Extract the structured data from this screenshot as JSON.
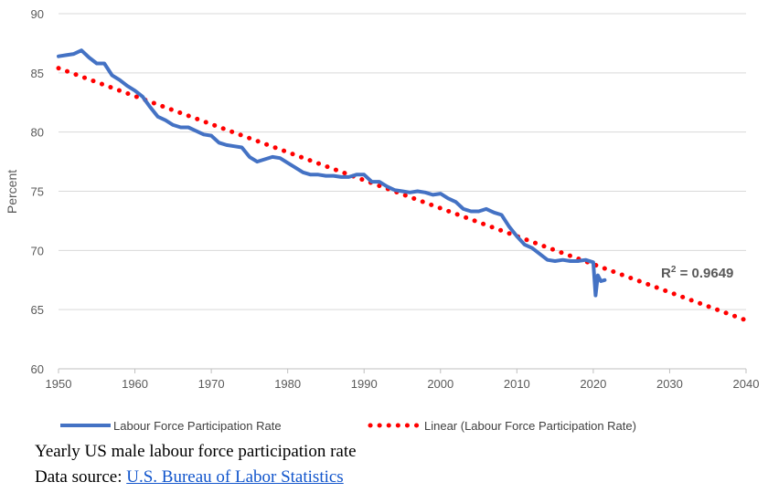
{
  "chart_data": {
    "type": "line",
    "xlim": [
      1950,
      2040
    ],
    "ylim": [
      60,
      90
    ],
    "x_ticks": [
      1950,
      1960,
      1970,
      1980,
      1990,
      2000,
      2010,
      2020,
      2030,
      2040
    ],
    "y_ticks": [
      60,
      65,
      70,
      75,
      80,
      85,
      90
    ],
    "ylabel": "Percent",
    "grid": "horizontal",
    "legend_position": "bottom",
    "series": [
      {
        "name": "Labour Force Participation Rate",
        "color": "#4472c4",
        "style": "solid",
        "x": [
          1950,
          1951,
          1952,
          1953,
          1954,
          1955,
          1956,
          1957,
          1958,
          1959,
          1960,
          1961,
          1962,
          1963,
          1964,
          1965,
          1966,
          1967,
          1968,
          1969,
          1970,
          1971,
          1972,
          1973,
          1974,
          1975,
          1976,
          1977,
          1978,
          1979,
          1980,
          1981,
          1982,
          1983,
          1984,
          1985,
          1986,
          1987,
          1988,
          1989,
          1990,
          1991,
          1992,
          1993,
          1994,
          1995,
          1996,
          1997,
          1998,
          1999,
          2000,
          2001,
          2002,
          2003,
          2004,
          2005,
          2006,
          2007,
          2008,
          2009,
          2010,
          2011,
          2012,
          2013,
          2014,
          2015,
          2016,
          2017,
          2018,
          2019,
          2020,
          2020.3,
          2020.6,
          2021,
          2021.5
        ],
        "values": [
          86.4,
          86.5,
          86.6,
          86.9,
          86.3,
          85.8,
          85.8,
          84.8,
          84.4,
          83.9,
          83.5,
          83.0,
          82.1,
          81.3,
          81.0,
          80.6,
          80.4,
          80.4,
          80.1,
          79.8,
          79.7,
          79.1,
          78.9,
          78.8,
          78.7,
          77.9,
          77.5,
          77.7,
          77.9,
          77.8,
          77.4,
          77.0,
          76.6,
          76.4,
          76.4,
          76.3,
          76.3,
          76.2,
          76.2,
          76.4,
          76.4,
          75.8,
          75.8,
          75.4,
          75.1,
          75.0,
          74.9,
          75.0,
          74.9,
          74.7,
          74.8,
          74.4,
          74.1,
          73.5,
          73.3,
          73.3,
          73.5,
          73.2,
          73.0,
          72.0,
          71.2,
          70.5,
          70.2,
          69.7,
          69.2,
          69.1,
          69.2,
          69.1,
          69.1,
          69.2,
          69.0,
          66.2,
          67.9,
          67.4,
          67.5
        ]
      },
      {
        "name": "Linear (Labour Force Participation Rate)",
        "color": "#ff0000",
        "style": "dotted",
        "x": [
          1950,
          2040
        ],
        "values": [
          85.4,
          64.1
        ]
      }
    ],
    "annotations": [
      {
        "text": "R² = 0.9649"
      }
    ]
  },
  "captions": {
    "line1": "Yearly US male labour force participation rate",
    "line2_prefix": "Data source: ",
    "link_text": "U.S. Bureau of Labor Statistics"
  }
}
